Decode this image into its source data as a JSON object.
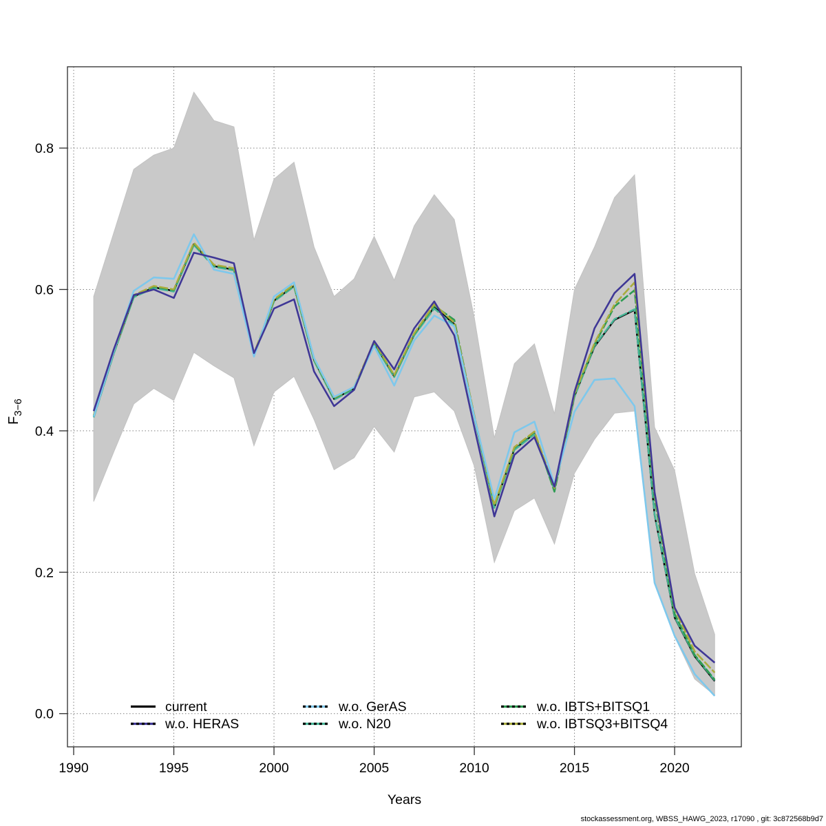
{
  "chart_data": {
    "type": "line",
    "title": "",
    "xlabel": "Years",
    "ylabel": "F",
    "ylabel_subscript": "3−6",
    "footer": "stockassessment.org, WBSS_HAWG_2023, r17090 , git: 3c872568b9d7",
    "grid": "dotted",
    "legend_position": "bottom-inside",
    "x_ticks": [
      1990,
      1995,
      2000,
      2005,
      2010,
      2015,
      2020
    ],
    "y_ticks": [
      0.0,
      0.2,
      0.4,
      0.6,
      0.8
    ],
    "xlim": [
      1989.69,
      2023.33
    ],
    "ylim": [
      -0.047,
      0.915
    ],
    "years": [
      1991,
      1992,
      1993,
      1994,
      1995,
      1996,
      1997,
      1998,
      1999,
      2000,
      2001,
      2002,
      2003,
      2004,
      2005,
      2006,
      2007,
      2008,
      2009,
      2010,
      2011,
      2012,
      2013,
      2014,
      2015,
      2016,
      2017,
      2018,
      2019,
      2020,
      2021,
      2022
    ],
    "band": {
      "label": "confidence-band",
      "color": "#c9c9c9",
      "upper": [
        0.59,
        0.68,
        0.77,
        0.79,
        0.8,
        0.879,
        0.839,
        0.83,
        0.67,
        0.756,
        0.78,
        0.66,
        0.59,
        0.615,
        0.675,
        0.613,
        0.69,
        0.734,
        0.699,
        0.56,
        0.39,
        0.495,
        0.523,
        0.424,
        0.6,
        0.66,
        0.73,
        0.762,
        0.405,
        0.344,
        0.198,
        0.112
      ],
      "lower": [
        0.3,
        0.37,
        0.438,
        0.46,
        0.443,
        0.511,
        0.492,
        0.475,
        0.379,
        0.455,
        0.477,
        0.416,
        0.345,
        0.362,
        0.406,
        0.37,
        0.448,
        0.455,
        0.428,
        0.35,
        0.214,
        0.287,
        0.305,
        0.24,
        0.34,
        0.388,
        0.425,
        0.428,
        0.185,
        0.109,
        0.049,
        0.026
      ]
    },
    "series": [
      {
        "name": "current",
        "color": "#000000",
        "style": "solid",
        "values": [
          0.42,
          0.51,
          0.59,
          0.603,
          0.598,
          0.664,
          0.633,
          0.628,
          0.507,
          0.584,
          0.605,
          0.5,
          0.445,
          0.46,
          0.524,
          0.477,
          0.536,
          0.575,
          0.551,
          0.42,
          0.292,
          0.374,
          0.396,
          0.317,
          0.449,
          0.519,
          0.557,
          0.571,
          0.281,
          0.136,
          0.081,
          0.046
        ]
      },
      {
        "name": "w.o. HERAS",
        "color": "#3f3796",
        "style": "dashed",
        "values": [
          0.428,
          0.515,
          0.592,
          0.6,
          0.588,
          0.652,
          0.645,
          0.637,
          0.51,
          0.573,
          0.586,
          0.484,
          0.435,
          0.458,
          0.527,
          0.487,
          0.545,
          0.583,
          0.535,
          0.405,
          0.279,
          0.366,
          0.391,
          0.321,
          0.455,
          0.545,
          0.595,
          0.622,
          0.313,
          0.15,
          0.096,
          0.072
        ]
      },
      {
        "name": "w.o. GerAS",
        "color": "#7ec8ec",
        "style": "dashed",
        "values": [
          0.42,
          0.512,
          0.598,
          0.617,
          0.615,
          0.678,
          0.628,
          0.622,
          0.505,
          0.59,
          0.61,
          0.503,
          0.448,
          0.462,
          0.52,
          0.464,
          0.528,
          0.563,
          0.548,
          0.42,
          0.303,
          0.398,
          0.413,
          0.324,
          0.427,
          0.472,
          0.474,
          0.435,
          0.185,
          0.11,
          0.056,
          0.025
        ]
      },
      {
        "name": "w.o. N20",
        "color": "#46b496",
        "style": "dashed",
        "values": [
          0.419,
          0.509,
          0.589,
          0.602,
          0.597,
          0.663,
          0.632,
          0.627,
          0.506,
          0.583,
          0.604,
          0.499,
          0.444,
          0.459,
          0.523,
          0.476,
          0.535,
          0.573,
          0.549,
          0.419,
          0.291,
          0.373,
          0.395,
          0.316,
          0.448,
          0.52,
          0.558,
          0.572,
          0.282,
          0.137,
          0.082,
          0.047
        ]
      },
      {
        "name": "w.o. IBTS+BITSQ1",
        "color": "#2e9b52",
        "style": "dashed",
        "values": [
          0.421,
          0.511,
          0.591,
          0.604,
          0.599,
          0.665,
          0.634,
          0.629,
          0.508,
          0.585,
          0.606,
          0.501,
          0.446,
          0.461,
          0.525,
          0.478,
          0.537,
          0.577,
          0.557,
          0.421,
          0.294,
          0.376,
          0.398,
          0.314,
          0.451,
          0.522,
          0.576,
          0.599,
          0.304,
          0.141,
          0.083,
          0.048
        ]
      },
      {
        "name": "w.o. IBTSQ3+BITSQ4",
        "color": "#a9ac3d",
        "style": "dashed",
        "values": [
          0.422,
          0.512,
          0.592,
          0.605,
          0.6,
          0.666,
          0.635,
          0.63,
          0.509,
          0.586,
          0.607,
          0.502,
          0.447,
          0.462,
          0.526,
          0.479,
          0.538,
          0.579,
          0.553,
          0.422,
          0.295,
          0.377,
          0.399,
          0.319,
          0.452,
          0.524,
          0.579,
          0.61,
          0.31,
          0.148,
          0.088,
          0.058
        ]
      }
    ],
    "draw_order": [
      0,
      3,
      4,
      5,
      2,
      1
    ],
    "legend_columns": [
      [
        0,
        1
      ],
      [
        2,
        3
      ],
      [
        4,
        5
      ]
    ]
  }
}
